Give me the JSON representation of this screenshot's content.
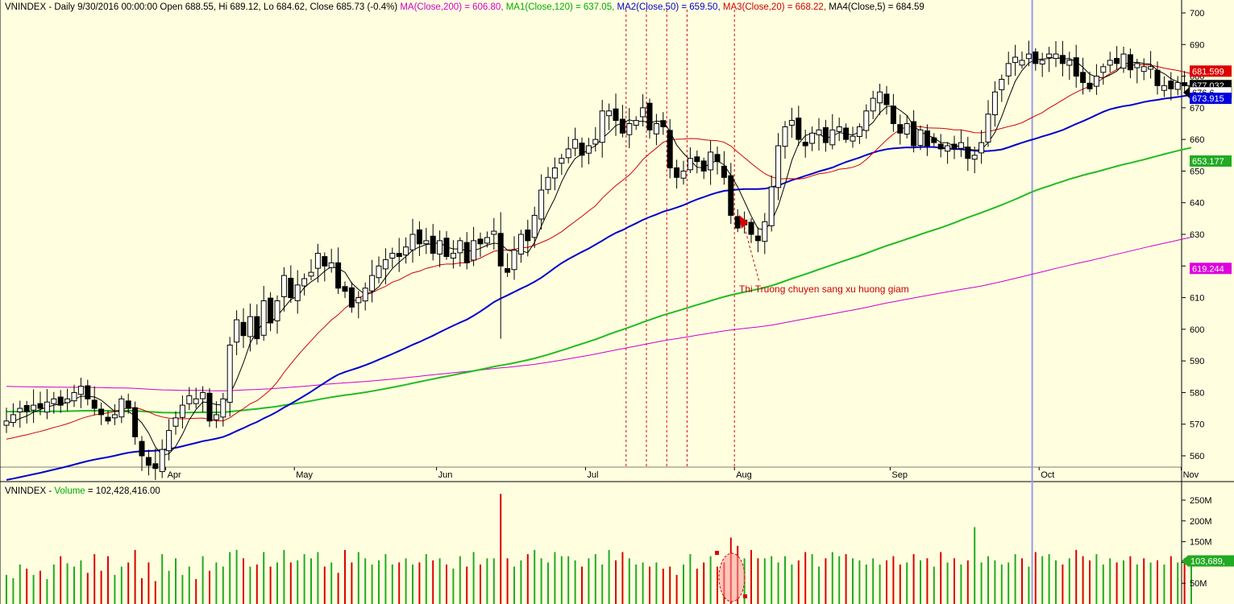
{
  "header": {
    "main": [
      {
        "text": "VNINDEX - Daily 9/30/2016 00:00:00 Open 688.55, Hi 689.12, Lo 684.62, Close 685.73 (-0.4%) ",
        "color": "#000000"
      },
      {
        "text": "MA(Close,200) = 606.80, ",
        "color": "#cc00cc"
      },
      {
        "text": "MA1(Close,120) = 637.05, ",
        "color": "#00aa00"
      },
      {
        "text": "MA2(Close,50) = 659.50, ",
        "color": "#0000cc"
      },
      {
        "text": "MA3(Close,20) = 668.22, ",
        "color": "#cc0000"
      },
      {
        "text": "MA4(Close,5) = 684.59",
        "color": "#000000"
      }
    ],
    "volume": [
      {
        "text": "VNINDEX - ",
        "color": "#000000"
      },
      {
        "text": "Volume",
        "color": "#00aa00"
      },
      {
        "text": " = 102,428,416.00",
        "color": "#000000"
      }
    ]
  },
  "annotation": {
    "text": "Thi Truong chuyen sang xu huong giam",
    "color": "#cc0000"
  },
  "price_tags": [
    {
      "label": "681.599",
      "value": 681.6,
      "bg": "#dd0000"
    },
    {
      "label": "677.032",
      "value": 677.03,
      "bg": "#000000"
    },
    {
      "label": "676.6",
      "value": 674.8,
      "bg": "#ffffff",
      "fg": "#000000",
      "pointer": true
    },
    {
      "label": "673.915",
      "value": 673.0,
      "bg": "#0000dd"
    },
    {
      "label": "653.177",
      "value": 653.18,
      "bg": "#22aa22"
    },
    {
      "label": "619.244",
      "value": 619.24,
      "bg": "#dd00dd"
    }
  ],
  "volume_tag": {
    "label": "103,689,",
    "value": 103.7,
    "bg": "#22aa22"
  },
  "chart_data": {
    "type": "candlestick",
    "title": "VNINDEX - Daily",
    "price_axis": {
      "min": 550,
      "max": 700,
      "ticks": [
        560,
        570,
        580,
        590,
        600,
        610,
        620,
        630,
        640,
        650,
        660,
        670,
        680,
        690,
        700
      ]
    },
    "volume_axis": {
      "min": 0,
      "max": 275,
      "unit": "M",
      "ticks": [
        {
          "v": 50,
          "label": "50M"
        },
        {
          "v": 100,
          "label": "100M"
        },
        {
          "v": 150,
          "label": "150M"
        },
        {
          "v": 200,
          "label": "200M"
        },
        {
          "v": 250,
          "label": "250M"
        }
      ]
    },
    "months": [
      {
        "label": "Apr",
        "index": 24
      },
      {
        "label": "May",
        "index": 43
      },
      {
        "label": "Jun",
        "index": 64
      },
      {
        "label": "Jul",
        "index": 86
      },
      {
        "label": "Aug",
        "index": 108
      },
      {
        "label": "Sep",
        "index": 131
      },
      {
        "label": "Oct",
        "index": 153
      },
      {
        "label": "Nov",
        "index": 174
      }
    ],
    "vlines_red": [
      92,
      95,
      98,
      101,
      108
    ],
    "vline_blue": 151.5,
    "closes": [
      571,
      573,
      575,
      574,
      576,
      575,
      577,
      578,
      576,
      578,
      580,
      582,
      578,
      575,
      573,
      571,
      573,
      578,
      575,
      566,
      560,
      557,
      556,
      562,
      568,
      572,
      576,
      579,
      578,
      580,
      571,
      573,
      578,
      595,
      603,
      598,
      604,
      597,
      609,
      602,
      609,
      617,
      610,
      614,
      616,
      618,
      624,
      620,
      621,
      613,
      612,
      607,
      610,
      613,
      617,
      620,
      622,
      624,
      623,
      626,
      630,
      627,
      628,
      624,
      628,
      623,
      624,
      628,
      621,
      628,
      627,
      629,
      631,
      620,
      618,
      625,
      630,
      628,
      636,
      644,
      648,
      651,
      654,
      657,
      660,
      655,
      658,
      660,
      669,
      669,
      666,
      662,
      665,
      666,
      670,
      663,
      665,
      664,
      651,
      648,
      650,
      654,
      653,
      650,
      656,
      653,
      648,
      636,
      632,
      633,
      630,
      628,
      634,
      645,
      658,
      664,
      666,
      660,
      658,
      662,
      663,
      659,
      663,
      664,
      660,
      661,
      664,
      669,
      673,
      675,
      671,
      665,
      662,
      665,
      658,
      663,
      658,
      659,
      657,
      658,
      657,
      659,
      654,
      655,
      659,
      668,
      675,
      679,
      684,
      686,
      685,
      687,
      684,
      685,
      687,
      687,
      684,
      685,
      680,
      678,
      676,
      680,
      683,
      685,
      684,
      687,
      682,
      684,
      683,
      683,
      677,
      677,
      676,
      678,
      677,
      677
    ],
    "volumes": [
      70,
      62,
      95,
      85,
      70,
      80,
      60,
      95,
      115,
      98,
      90,
      105,
      75,
      120,
      80,
      115,
      70,
      90,
      100,
      130,
      62,
      100,
      55,
      120,
      80,
      110,
      70,
      90,
      60,
      115,
      80,
      100,
      90,
      125,
      130,
      110,
      90,
      95,
      125,
      90,
      100,
      130,
      100,
      105,
      120,
      110,
      125,
      90,
      100,
      75,
      130,
      100,
      125,
      110,
      95,
      105,
      120,
      95,
      100,
      110,
      95,
      100,
      120,
      105,
      110,
      95,
      85,
      115,
      90,
      125,
      95,
      110,
      110,
      265,
      110,
      90,
      105,
      120,
      130,
      110,
      100,
      125,
      115,
      115,
      105,
      90,
      110,
      120,
      95,
      130,
      105,
      125,
      110,
      95,
      100,
      90,
      100,
      85,
      90,
      70,
      95,
      120,
      85,
      100,
      115,
      90,
      100,
      160,
      140,
      110,
      130,
      110,
      110,
      115,
      100,
      115,
      95,
      105,
      125,
      120,
      90,
      110,
      125,
      115,
      120,
      110,
      105,
      95,
      110,
      95,
      105,
      115,
      95,
      100,
      120,
      105,
      110,
      90,
      125,
      100,
      110,
      95,
      105,
      185,
      100,
      115,
      105,
      95,
      100,
      120,
      110,
      90,
      125,
      115,
      120,
      105,
      95,
      110,
      130,
      115,
      105,
      120,
      95,
      110,
      100,
      105,
      115,
      95,
      110,
      100,
      105,
      95,
      115,
      100,
      110,
      103
    ]
  }
}
